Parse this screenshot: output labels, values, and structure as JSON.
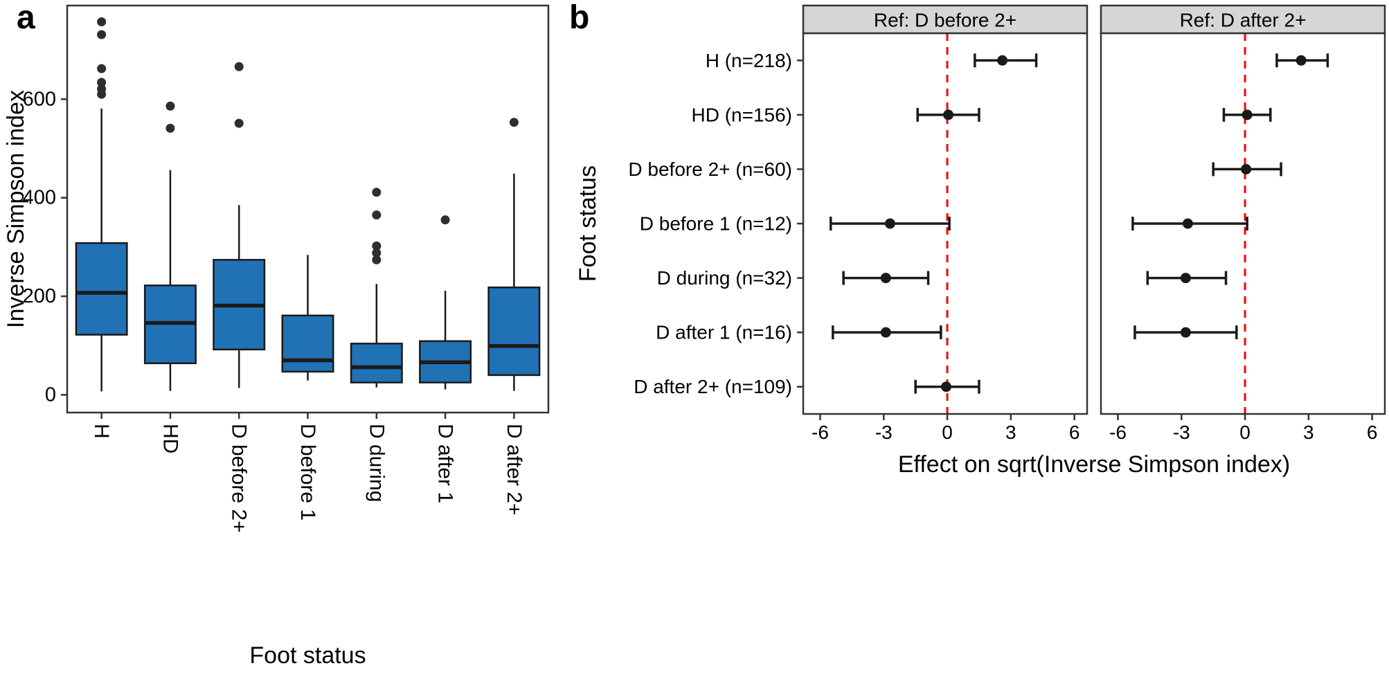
{
  "figure": {
    "panel_a_label": "a",
    "panel_b_label": "b"
  },
  "colors": {
    "background": "#ffffff",
    "box_fill": "#2171b5",
    "stroke": "#1a1a1a",
    "outlier": "#2e2e2e",
    "text": "#000000",
    "panel_border": "#333333",
    "axis": "#333333",
    "strip_bg": "#d6d6d6",
    "ref_line": "#ff0000"
  },
  "chart_data": [
    {
      "type": "boxplot",
      "panel": "a",
      "title": "",
      "xlabel": "Foot status",
      "ylabel": "Inverse Simpson index",
      "ylim": [
        -36,
        790
      ],
      "ytick_values": [
        0,
        200,
        400,
        600
      ],
      "ytick_labels": [
        "0",
        "200",
        "400",
        "600"
      ],
      "categories": [
        "H",
        "HD",
        "D before 2+",
        "D before 1",
        "D during",
        "D after 1",
        "D after 2+"
      ],
      "boxes": [
        {
          "category": "H",
          "whisker_low": 7,
          "q1": 122,
          "median": 207,
          "q3": 308,
          "whisker_high": 581,
          "outliers": [
            610,
            621,
            634,
            662,
            731,
            757
          ]
        },
        {
          "category": "HD",
          "whisker_low": 8,
          "q1": 64,
          "median": 146,
          "q3": 222,
          "whisker_high": 456,
          "outliers": [
            541,
            586
          ]
        },
        {
          "category": "D before 2+",
          "whisker_low": 14,
          "q1": 92,
          "median": 181,
          "q3": 274,
          "whisker_high": 385,
          "outliers": [
            551,
            666
          ]
        },
        {
          "category": "D before 1",
          "whisker_low": 29,
          "q1": 47,
          "median": 70,
          "q3": 161,
          "whisker_high": 284,
          "outliers": []
        },
        {
          "category": "D during",
          "whisker_low": 15,
          "q1": 25,
          "median": 56,
          "q3": 104,
          "whisker_high": 225,
          "outliers": [
            274,
            288,
            302,
            365,
            411
          ]
        },
        {
          "category": "D after 1",
          "whisker_low": 11,
          "q1": 25,
          "median": 66,
          "q3": 109,
          "whisker_high": 211,
          "outliers": [
            355
          ]
        },
        {
          "category": "D after 2+",
          "whisker_low": 8,
          "q1": 40,
          "median": 99,
          "q3": 218,
          "whisker_high": 449,
          "outliers": [
            553
          ]
        }
      ]
    },
    {
      "type": "forest",
      "panel": "b",
      "title": "",
      "xlabel": "Effect on sqrt(Inverse Simpson index)",
      "ylabel": "Foot status",
      "xlim": [
        -6.8,
        6.6
      ],
      "xtick_values": [
        -6,
        -3,
        0,
        3,
        6
      ],
      "xtick_labels": [
        "-6",
        "-3",
        "0",
        "3",
        "6"
      ],
      "ref_x": 0,
      "rows": [
        "H (n=218)",
        "HD (n=156)",
        "D before 2+ (n=60)",
        "D before 1 (n=12)",
        "D during (n=32)",
        "D after 1 (n=16)",
        "D after 2+ (n=109)"
      ],
      "facets": [
        {
          "label": "Ref: D before 2+",
          "estimates": [
            {
              "est": 2.6,
              "lo": 1.3,
              "hi": 4.2
            },
            {
              "est": 0.05,
              "lo": -1.4,
              "hi": 1.5
            },
            null,
            {
              "est": -2.7,
              "lo": -5.5,
              "hi": 0.1
            },
            {
              "est": -2.9,
              "lo": -4.9,
              "hi": -0.9
            },
            {
              "est": -2.9,
              "lo": -5.4,
              "hi": -0.3
            },
            {
              "est": -0.05,
              "lo": -1.5,
              "hi": 1.5
            }
          ]
        },
        {
          "label": "Ref: D after 2+",
          "estimates": [
            {
              "est": 2.65,
              "lo": 1.5,
              "hi": 3.9
            },
            {
              "est": 0.1,
              "lo": -1.0,
              "hi": 1.2
            },
            {
              "est": 0.05,
              "lo": -1.5,
              "hi": 1.7
            },
            {
              "est": -2.7,
              "lo": -5.3,
              "hi": 0.1
            },
            {
              "est": -2.8,
              "lo": -4.6,
              "hi": -0.9
            },
            {
              "est": -2.8,
              "lo": -5.2,
              "hi": -0.4
            },
            null
          ]
        }
      ]
    }
  ]
}
